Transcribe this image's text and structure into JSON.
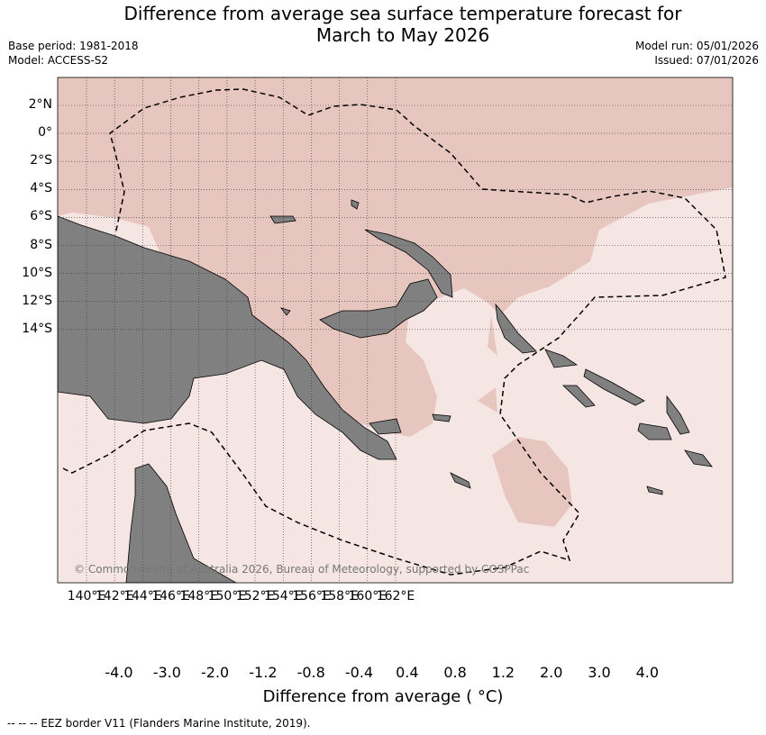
{
  "title_line1": "Difference from average sea surface temperature forecast for",
  "title_line2": "March to May 2026",
  "base_period": "Base period: 1981-2018",
  "model": "Model: ACCESS-S2",
  "model_run": "Model run: 05/01/2026",
  "issued": "Issued: 07/01/2026",
  "map": {
    "lon_labels": [
      "140°E",
      "142°E",
      "144°E",
      "146°E",
      "148°E",
      "150°E",
      "152°E",
      "154°E",
      "156°E",
      "158°E",
      "160°E",
      "162°E"
    ],
    "lat_labels": [
      "2°N",
      "0°",
      "2°S",
      "4°S",
      "6°S",
      "8°S",
      "10°S",
      "12°S",
      "14°S"
    ],
    "copyright": "© Commonwealth of Australia 2026, Bureau of Meteorology, supported by COSPPac",
    "colors": {
      "land": "#808080",
      "anom_0_8_1_2": "#e8c6c0",
      "anom_0_4_0_8": "#f5e6e4"
    }
  },
  "colorbar": {
    "labels": [
      "-4.0",
      "-3.0",
      "-2.0",
      "-1.2",
      "-0.8",
      "-0.4",
      "0.4",
      "0.8",
      "1.2",
      "2.0",
      "3.0",
      "4.0"
    ],
    "colors": [
      "#3a7f8c",
      "#48a1b2",
      "#6bafbd",
      "#8bbac5",
      "#a9c7cc",
      "#d3d6d6",
      "#ffffff",
      "#f5e6e4",
      "#e8c6c0",
      "#d88f96",
      "#cc6a72",
      "#c04654",
      "#b01e3a"
    ],
    "title": "Difference from average ( °C)"
  },
  "footer": "--  --  -- EEZ border V11 (Flanders Marine Institute, 2019)."
}
